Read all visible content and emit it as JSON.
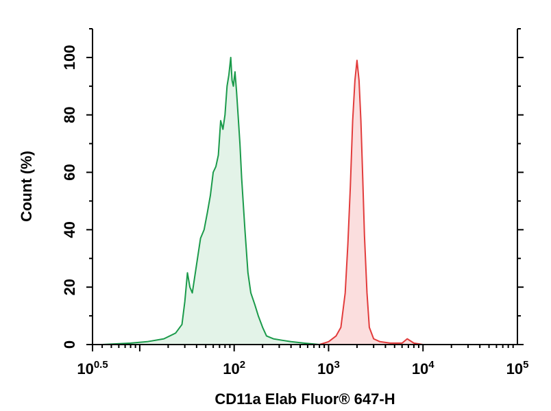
{
  "chart_data": {
    "type": "area",
    "title": "",
    "xlabel": "CD11a Elab Fluor® 647-H",
    "ylabel": "Count (%)",
    "x_scale": "log",
    "xlim": [
      3.16,
      100000
    ],
    "ylim": [
      0,
      110
    ],
    "grid": false,
    "legend": "none",
    "x_ticks": [
      {
        "base": "10",
        "exp": "0.5",
        "value": 3.16
      },
      {
        "base": "10",
        "exp": "2",
        "value": 100
      },
      {
        "base": "10",
        "exp": "3",
        "value": 1000
      },
      {
        "base": "10",
        "exp": "4",
        "value": 10000
      },
      {
        "base": "10",
        "exp": "5",
        "value": 100000
      }
    ],
    "y_ticks": [
      "0",
      "20",
      "40",
      "60",
      "80",
      "100"
    ],
    "series": [
      {
        "color": "#1a9a4a",
        "fill": "#e3f3e8",
        "x": [
          4,
          8,
          12,
          18,
          24,
          28,
          30,
          32,
          34,
          36,
          40,
          44,
          48,
          52,
          56,
          60,
          64,
          68,
          72,
          76,
          80,
          84,
          88,
          92,
          95,
          98,
          102,
          106,
          110,
          115,
          120,
          130,
          140,
          150,
          165,
          180,
          200,
          220,
          260,
          320,
          400,
          550,
          800
        ],
        "y": [
          0,
          0.5,
          1,
          2,
          4,
          7,
          15,
          25,
          20,
          18,
          28,
          37,
          40,
          46,
          52,
          60,
          62,
          66,
          78,
          75,
          80,
          90,
          94,
          100,
          92,
          90,
          95,
          88,
          80,
          70,
          58,
          40,
          25,
          18,
          14,
          10,
          6,
          3,
          2,
          1.5,
          1,
          0.5,
          0
        ]
      },
      {
        "color": "#e23b3b",
        "fill": "#fbdede",
        "x": [
          800,
          1000,
          1200,
          1350,
          1500,
          1600,
          1700,
          1800,
          1900,
          2000,
          2100,
          2200,
          2300,
          2400,
          2550,
          2700,
          3000,
          3500,
          4500,
          6000,
          6800,
          8000,
          10000
        ],
        "y": [
          0,
          1,
          3,
          6,
          18,
          35,
          55,
          78,
          92,
          99,
          92,
          78,
          58,
          38,
          18,
          6,
          2,
          1,
          0.5,
          0.5,
          2,
          0.5,
          0
        ]
      }
    ]
  }
}
